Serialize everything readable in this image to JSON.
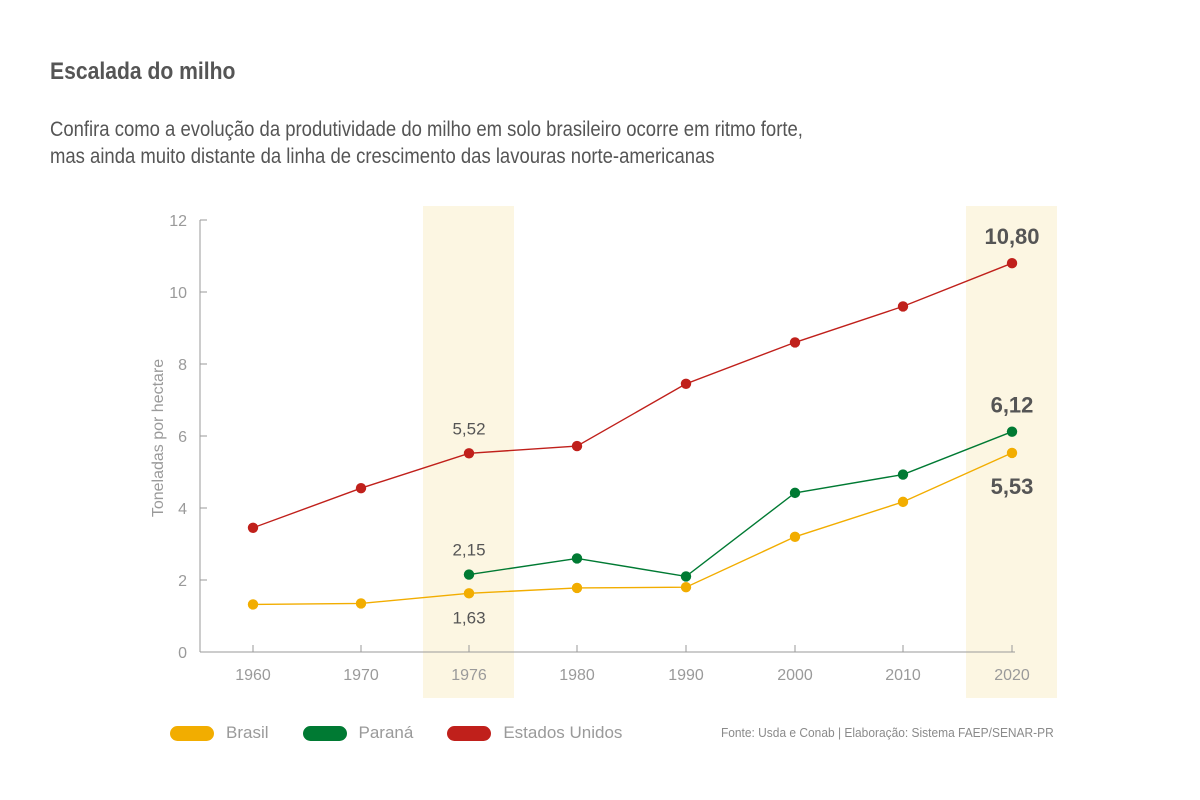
{
  "title": "Escalada do milho",
  "subtitle_lines": [
    "Confira como a evolução da produtividade do milho em solo brasileiro ocorre em ritmo forte,",
    "mas ainda muito distante da linha de crescimento das lavouras norte-americanas"
  ],
  "source": "Fonte: Usda e Conab | Elaboração: Sistema FAEP/SENAR-PR",
  "legend": [
    {
      "label": "Brasil",
      "color": "#f2ad00"
    },
    {
      "label": "Paraná",
      "color": "#007a33"
    },
    {
      "label": "Estados Unidos",
      "color": "#c0201b"
    }
  ],
  "chart_data": {
    "type": "line",
    "title": "",
    "xlabel": "",
    "ylabel": "Toneladas por hectare",
    "categories": [
      "1960",
      "1970",
      "1976",
      "1980",
      "1990",
      "2000",
      "2010",
      "2020"
    ],
    "ylim": [
      0,
      12
    ],
    "yticks": [
      "0",
      "2",
      "4",
      "6",
      "8",
      "10",
      "12"
    ],
    "highlighted_categories": [
      "1976",
      "2020"
    ],
    "highlight_color": "#fcf6e2",
    "grid": false,
    "series": [
      {
        "name": "Estados Unidos",
        "color": "#c0201b",
        "values": [
          3.45,
          4.55,
          5.52,
          5.72,
          7.45,
          8.6,
          9.6,
          10.8
        ]
      },
      {
        "name": "Paraná",
        "color": "#007a33",
        "values": [
          null,
          null,
          2.15,
          2.6,
          2.1,
          4.42,
          4.93,
          6.12
        ]
      },
      {
        "name": "Brasil",
        "color": "#f2ad00",
        "values": [
          1.32,
          1.35,
          1.63,
          1.78,
          1.8,
          3.2,
          4.17,
          5.53
        ]
      }
    ],
    "data_labels": [
      {
        "series": "Estados Unidos",
        "category": "1976",
        "text": "5,52",
        "style": "small",
        "placement": "above"
      },
      {
        "series": "Paraná",
        "category": "1976",
        "text": "2,15",
        "style": "small",
        "placement": "above"
      },
      {
        "series": "Brasil",
        "category": "1976",
        "text": "1,63",
        "style": "small",
        "placement": "below"
      },
      {
        "series": "Estados Unidos",
        "category": "2020",
        "text": "10,80",
        "style": "big",
        "placement": "above"
      },
      {
        "series": "Paraná",
        "category": "2020",
        "text": "6,12",
        "style": "big",
        "placement": "above"
      },
      {
        "series": "Brasil",
        "category": "2020",
        "text": "5,53",
        "style": "big",
        "placement": "below"
      }
    ]
  }
}
